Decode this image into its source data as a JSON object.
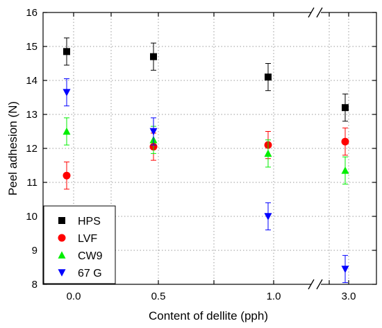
{
  "chart_data": {
    "type": "scatter",
    "xlabel": "Content of dellite (pph)",
    "ylabel": "Peel adhesion (N)",
    "ylim": [
      8,
      16
    ],
    "y_ticks": [
      "8",
      "9",
      "10",
      "11",
      "12",
      "13",
      "14",
      "15",
      "16"
    ],
    "x_ticks": [
      "0.0",
      "0.5",
      "1.0",
      "3.0"
    ],
    "x_axis_break": "between 1.0 and 3.0",
    "grid": "dotted, on",
    "legend_position": "bottom-left",
    "series": [
      {
        "name": "HPS",
        "marker": "square",
        "color": "#000000",
        "points": [
          {
            "x": "0.0",
            "y": 14.85,
            "err": 0.4
          },
          {
            "x": "0.5",
            "y": 14.7,
            "err": 0.4
          },
          {
            "x": "1.0",
            "y": 14.1,
            "err": 0.4
          },
          {
            "x": "3.0",
            "y": 13.2,
            "err": 0.4
          }
        ]
      },
      {
        "name": "LVF",
        "marker": "circle",
        "color": "#ff0000",
        "points": [
          {
            "x": "0.0",
            "y": 11.2,
            "err": 0.4
          },
          {
            "x": "0.5",
            "y": 12.05,
            "err": 0.4
          },
          {
            "x": "1.0",
            "y": 12.1,
            "err": 0.4
          },
          {
            "x": "3.0",
            "y": 12.2,
            "err": 0.4
          }
        ]
      },
      {
        "name": "CW9",
        "marker": "triangle-up",
        "color": "#00ee00",
        "points": [
          {
            "x": "0.0",
            "y": 12.5,
            "err": 0.4
          },
          {
            "x": "0.5",
            "y": 12.25,
            "err": 0.4
          },
          {
            "x": "1.0",
            "y": 11.85,
            "err": 0.4
          },
          {
            "x": "3.0",
            "y": 11.35,
            "err": 0.4
          }
        ]
      },
      {
        "name": "67 G",
        "marker": "triangle-down",
        "color": "#0000ff",
        "points": [
          {
            "x": "0.0",
            "y": 13.65,
            "err": 0.4
          },
          {
            "x": "0.5",
            "y": 12.5,
            "err": 0.4
          },
          {
            "x": "1.0",
            "y": 10.0,
            "err": 0.4
          },
          {
            "x": "3.0",
            "y": 8.45,
            "err": 0.4
          }
        ]
      }
    ]
  }
}
